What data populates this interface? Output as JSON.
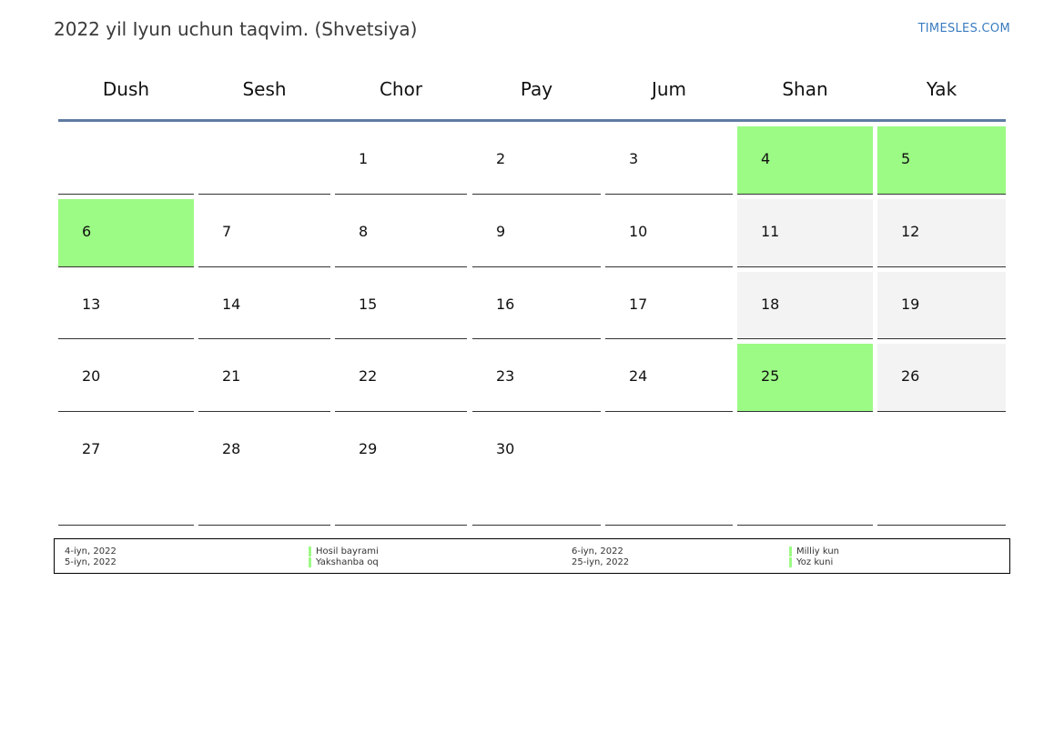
{
  "title": "2022 yil Iyun uchun taqvim. (Shvetsiya)",
  "brand": "TIMESLES.COM",
  "colors": {
    "holiday": "#9cfb85",
    "weekend": "#f3f3f3",
    "header_rule": "#5f7ca2",
    "brand": "#3a7cc0"
  },
  "weekdays": [
    "Dush",
    "Sesh",
    "Chor",
    "Pay",
    "Jum",
    "Shan",
    "Yak"
  ],
  "weeks": [
    [
      null,
      null,
      "1",
      "2",
      "3",
      "4",
      "5"
    ],
    [
      "6",
      "7",
      "8",
      "9",
      "10",
      "11",
      "12"
    ],
    [
      "13",
      "14",
      "15",
      "16",
      "17",
      "18",
      "19"
    ],
    [
      "20",
      "21",
      "22",
      "23",
      "24",
      "25",
      "26"
    ],
    [
      "27",
      "28",
      "29",
      "30",
      null,
      null,
      null
    ]
  ],
  "holiday_days": [
    "4",
    "5",
    "6",
    "25"
  ],
  "legend": {
    "left": [
      {
        "date": "4-iyn, 2022",
        "name": "Hosil bayrami"
      },
      {
        "date": "5-iyn, 2022",
        "name": "Yakshanba oq"
      }
    ],
    "right": [
      {
        "date": "6-iyn, 2022",
        "name": "Milliy kun"
      },
      {
        "date": "25-iyn, 2022",
        "name": "Yoz kuni"
      }
    ]
  }
}
